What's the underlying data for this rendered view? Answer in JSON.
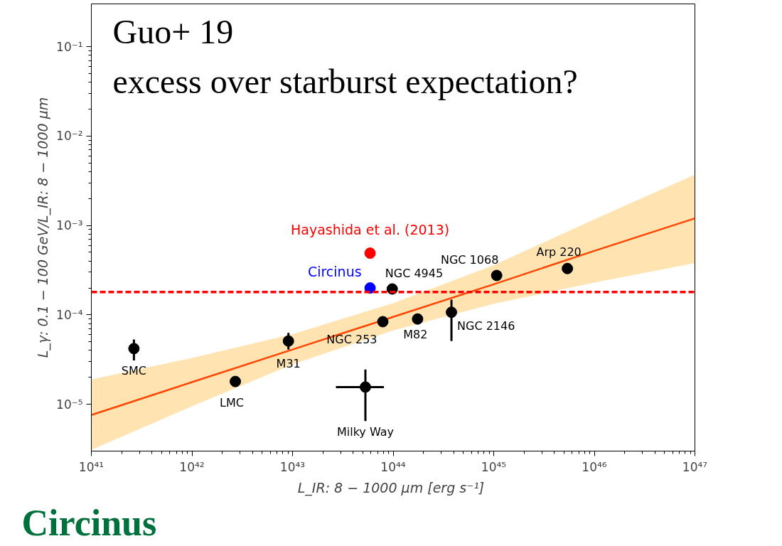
{
  "chart_data": {
    "type": "scatter",
    "xlabel": "L_IR: 8 − 1000 μm  [erg s⁻¹]",
    "ylabel": "L_γ: 0.1 − 100 GeV/L_IR: 8 − 1000 μm",
    "log": "xy",
    "xlim": [
      1e+41,
      1e+47
    ],
    "ylim": [
      3e-06,
      0.3
    ],
    "xticks": [
      {
        "value": 1e+41,
        "label": "10⁴¹"
      },
      {
        "value": 1e+42,
        "label": "10⁴²"
      },
      {
        "value": 1e+43,
        "label": "10⁴³"
      },
      {
        "value": 1e+44,
        "label": "10⁴⁴"
      },
      {
        "value": 1e+45,
        "label": "10⁴⁵"
      },
      {
        "value": 1e+46,
        "label": "10⁴⁶"
      },
      {
        "value": 1e+47,
        "label": "10⁴⁷"
      }
    ],
    "yticks": [
      {
        "value": 1e-05,
        "label": "10⁻⁵"
      },
      {
        "value": 0.0001,
        "label": "10⁻⁴"
      },
      {
        "value": 0.001,
        "label": "10⁻³"
      },
      {
        "value": 0.01,
        "label": "10⁻²"
      },
      {
        "value": 0.1,
        "label": "10⁻¹"
      }
    ],
    "grid": false,
    "marker": "circle",
    "series": [
      {
        "type": "line",
        "marker": "none",
        "color": "#ff4500",
        "x": [
          1e+41,
          1e+42,
          1e+43,
          1e+44,
          1e+45,
          1e+46,
          1e+47
        ],
        "values": [
          7.6e-06,
          1.77e-05,
          4.1e-05,
          9.5e-05,
          0.00022,
          0.00052,
          0.0012
        ],
        "lower": [
          3.1e-06,
          9.5e-06,
          2.8e-05,
          6.7e-05,
          0.000133,
          0.00023,
          0.00038
        ],
        "upper": [
          1.9e-05,
          3.3e-05,
          6.1e-05,
          0.000135,
          0.00036,
          0.00117,
          0.0037
        ]
      },
      {
        "color": "#000000",
        "x": [
          2.65e+41,
          2.7e+42,
          9.1e+42,
          5.3e+43,
          7.9e+43,
          1.75e+44,
          3.8e+44,
          9.8e+43,
          1.07e+45,
          5.4e+45
        ],
        "values": [
          4.2e-05,
          1.8e-05,
          5.1e-05,
          1.56e-05,
          8.4e-05,
          9e-05,
          0.000107,
          0.000195,
          0.000276,
          0.00033
        ],
        "errors": [
          [
            3.1e-05,
            5.3e-05
          ],
          null,
          [
            4.1e-05,
            6.3e-05
          ],
          [
            6.5e-06,
            2.45e-05
          ],
          null,
          null,
          [
            5.1e-05,
            0.000148
          ],
          null,
          null,
          [
            0.00029,
            0.00038
          ]
        ],
        "xerrors": [
          null,
          null,
          null,
          [
            2.7e+43,
            8.1e+43
          ],
          null,
          null,
          null,
          null,
          null,
          null
        ]
      },
      {
        "name": "Circinus",
        "color": "#0000ff",
        "x": [
          5.9e+43
        ],
        "values": [
          0.0002
        ],
        "errors": [
          [
            0.000175,
            0.000225
          ]
        ]
      },
      {
        "name": "Hayashida et al. (2013)",
        "color": "#ff0000",
        "x": [
          5.9e+43
        ],
        "values": [
          0.00049
        ],
        "errors": [
          [
            0.00043,
            0.00056
          ]
        ]
      }
    ],
    "ref_lines": [
      {
        "axis": "y",
        "value": 0.00018,
        "color": "#ff0000",
        "line_style": "dashed"
      }
    ],
    "annotations": [
      "Guo+ 19",
      "excess over starburst expectation?",
      "Circinus",
      {
        "text": "SMC",
        "x": 2.65e+41,
        "y": 4.2e-05
      },
      {
        "text": "LMC",
        "x": 2.7e+42,
        "y": 1.8e-05
      },
      {
        "text": "M31",
        "x": 9.1e+42,
        "y": 5.1e-05
      },
      {
        "text": "Milky Way",
        "x": 5.3e+43,
        "y": 6.5e-06
      },
      {
        "text": "NGC 253",
        "x": 7.9e+43,
        "y": 8.4e-05
      },
      {
        "text": "M82",
        "x": 1.75e+44,
        "y": 9e-05
      },
      {
        "text": "NGC 2146",
        "x": 3.8e+44,
        "y": 0.000107
      },
      {
        "text": "NGC 4945",
        "x": 9.8e+43,
        "y": 0.000195
      },
      {
        "text": "NGC 1068",
        "x": 1.07e+45,
        "y": 0.000276
      },
      {
        "text": "Arp 220",
        "x": 5.4e+45,
        "y": 0.00033
      }
    ]
  }
}
